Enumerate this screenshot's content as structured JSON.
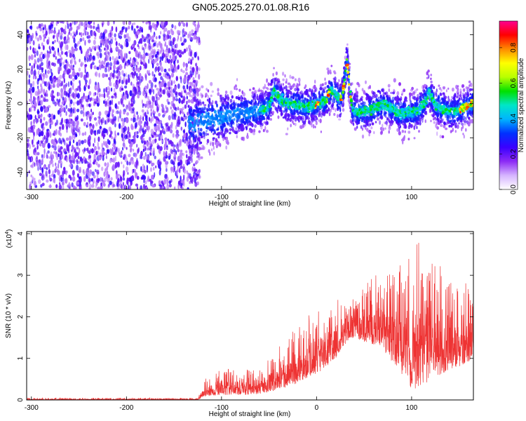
{
  "title": "GN05.2025.270.01.08.R16",
  "chart_data": [
    {
      "type": "heatmap",
      "xlabel": "Height of straight line (km)",
      "ylabel": "Frequency (Hz)",
      "xlim": [
        -305,
        165
      ],
      "ylim": [
        -50,
        48
      ],
      "xticks": [
        -300,
        -200,
        -100,
        0,
        100
      ],
      "yticks": [
        -40,
        -20,
        0,
        20,
        40
      ],
      "noise_region_x": [
        -305,
        -123
      ],
      "ridge": {
        "x": [
          -135,
          -120,
          -100,
          -80,
          -60,
          -50,
          -45,
          -38,
          -30,
          -10,
          0,
          10,
          15,
          20,
          25,
          29,
          32,
          35,
          38,
          45,
          60,
          70,
          80,
          88,
          95,
          105,
          115,
          118,
          125,
          140,
          150,
          160,
          165
        ],
        "y": [
          -12,
          -10,
          -8,
          -6,
          -4,
          -2,
          8,
          2,
          0,
          -2,
          0,
          2,
          8,
          6,
          2,
          10,
          26,
          8,
          -4,
          -5,
          -3,
          -1,
          -3,
          -6,
          -5,
          -5,
          1,
          7,
          -1,
          -5,
          -4,
          -1,
          0
        ]
      },
      "colorbar": {
        "label": "Normalized spectral amplitude",
        "range": [
          0.0,
          0.95
        ],
        "ticks": [
          0.0,
          0.2,
          0.4,
          0.6,
          0.8
        ],
        "tick_labels": [
          "0.0",
          "0.2",
          "0.4",
          "0.6",
          "0.8"
        ],
        "colors": [
          "#ffffff",
          "#d6b5ff",
          "#8c2bf5",
          "#3a00ff",
          "#0030ff",
          "#00b4ff",
          "#00e6c8",
          "#00e000",
          "#b8ff00",
          "#ffff00",
          "#ff8c00",
          "#ff0000",
          "#ff0090"
        ]
      }
    },
    {
      "type": "line",
      "xlabel": "Height of straight line (km)",
      "ylabel": "SNR (10 * v/v)",
      "scale_label": "(x10",
      "scale_exponent": "4",
      "scale_suffix": ")",
      "xlim": [
        -305,
        165
      ],
      "ylim": [
        0,
        4.05
      ],
      "xticks": [
        -300,
        -200,
        -100,
        0,
        100
      ],
      "yticks": [
        0,
        1,
        2,
        3,
        4
      ],
      "line_color": "#ee3333",
      "envelope": {
        "x": [
          -305,
          -125,
          -118,
          -100,
          -80,
          -60,
          -40,
          -20,
          0,
          20,
          35,
          50,
          70,
          90,
          100,
          110,
          120,
          140,
          160,
          165
        ],
        "low": [
          0.0,
          0.0,
          0.08,
          0.12,
          0.12,
          0.14,
          0.24,
          0.4,
          0.6,
          1.0,
          1.5,
          1.4,
          1.2,
          0.6,
          0.1,
          0.3,
          0.5,
          0.7,
          0.9,
          1.0
        ],
        "mid": [
          0.02,
          0.02,
          0.2,
          0.33,
          0.33,
          0.36,
          0.5,
          0.82,
          1.1,
          1.45,
          1.65,
          1.7,
          1.72,
          1.7,
          1.7,
          1.72,
          1.65,
          1.6,
          1.6,
          1.6
        ],
        "high": [
          0.05,
          0.05,
          0.5,
          0.75,
          0.75,
          0.8,
          1.3,
          1.8,
          2.2,
          2.5,
          2.4,
          2.9,
          3.1,
          3.4,
          3.4,
          4.05,
          3.6,
          3.0,
          2.8,
          2.6
        ]
      }
    }
  ]
}
